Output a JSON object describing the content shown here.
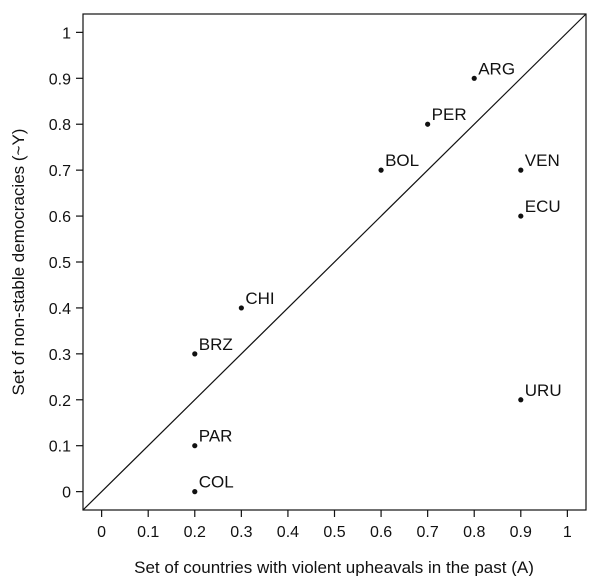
{
  "chart_data": {
    "type": "scatter",
    "title": "",
    "xlabel": "Set of countries with violent upheavals in the past (A)",
    "ylabel": "Set of non-stable democracies (~Y)",
    "xlim": [
      -0.04,
      1.04
    ],
    "ylim": [
      -0.04,
      1.04
    ],
    "xticks": [
      "0",
      "0.1",
      "0.2",
      "0.3",
      "0.4",
      "0.5",
      "0.6",
      "0.7",
      "0.8",
      "0.9",
      "1"
    ],
    "yticks": [
      "0",
      "0.1",
      "0.2",
      "0.3",
      "0.4",
      "0.5",
      "0.6",
      "0.7",
      "0.8",
      "0.9",
      "1"
    ],
    "grid": false,
    "reference_line": "diagonal y = x",
    "points": [
      {
        "label": "ARG",
        "x": 0.8,
        "y": 0.9
      },
      {
        "label": "PER",
        "x": 0.7,
        "y": 0.8
      },
      {
        "label": "BOL",
        "x": 0.6,
        "y": 0.7
      },
      {
        "label": "VEN",
        "x": 0.9,
        "y": 0.7
      },
      {
        "label": "ECU",
        "x": 0.9,
        "y": 0.6
      },
      {
        "label": "CHI",
        "x": 0.3,
        "y": 0.4
      },
      {
        "label": "BRZ",
        "x": 0.2,
        "y": 0.3
      },
      {
        "label": "URU",
        "x": 0.9,
        "y": 0.2
      },
      {
        "label": "PAR",
        "x": 0.2,
        "y": 0.1
      },
      {
        "label": "COL",
        "x": 0.2,
        "y": 0.0
      }
    ]
  }
}
